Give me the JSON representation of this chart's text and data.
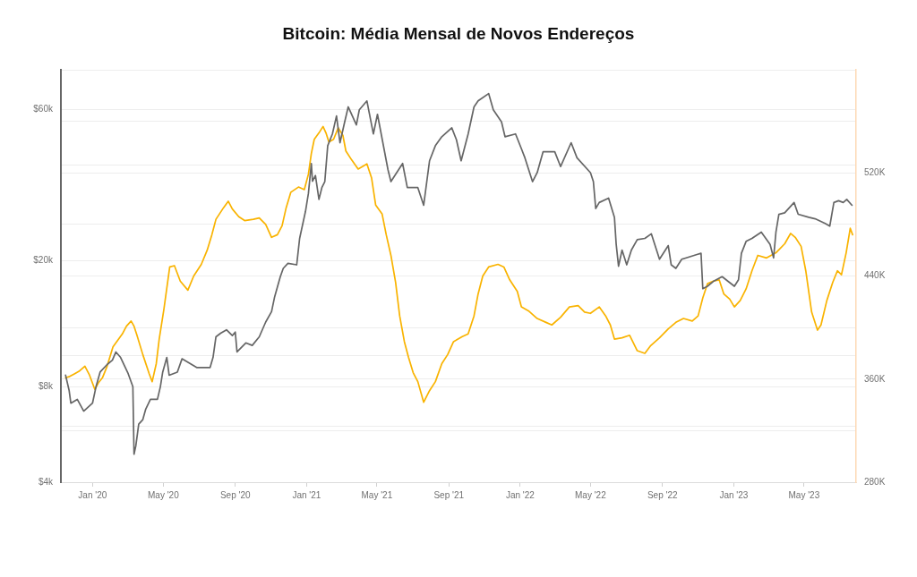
{
  "chart_data": {
    "type": "line",
    "title": "Bitcoin: Média Mensal de Novos Endereços",
    "xlim": [
      "2019-11-08",
      "2023-07-29"
    ],
    "xticks": [
      {
        "value": "2020-01-01",
        "label": "Jan '20"
      },
      {
        "value": "2020-05-01",
        "label": "May '20"
      },
      {
        "value": "2020-09-01",
        "label": "Sep '20"
      },
      {
        "value": "2021-01-01",
        "label": "Jan '21"
      },
      {
        "value": "2021-05-01",
        "label": "May '21"
      },
      {
        "value": "2021-09-01",
        "label": "Sep '21"
      },
      {
        "value": "2022-01-01",
        "label": "Jan '22"
      },
      {
        "value": "2022-05-01",
        "label": "May '22"
      },
      {
        "value": "2022-09-01",
        "label": "Sep '22"
      },
      {
        "value": "2023-01-01",
        "label": "Jan '23"
      },
      {
        "value": "2023-05-01",
        "label": "May '23"
      }
    ],
    "ylim": [
      4000,
      80000
    ],
    "yticks": [
      {
        "value": 4000,
        "label": "$4k"
      },
      {
        "value": 6000,
        "label": null
      },
      {
        "value": 8000,
        "label": "$8k"
      },
      {
        "value": 10000,
        "label": null
      },
      {
        "value": 20000,
        "label": "$20k"
      },
      {
        "value": 40000,
        "label": null
      },
      {
        "value": 60000,
        "label": "$60k"
      }
    ],
    "y2lim": [
      280000,
      600000
    ],
    "y2ticks": [
      {
        "value": 280000,
        "label": "280K"
      },
      {
        "value": 320000,
        "label": null
      },
      {
        "value": 360000,
        "label": "360K"
      },
      {
        "value": 400000,
        "label": null
      },
      {
        "value": 440000,
        "label": "440K"
      },
      {
        "value": 480000,
        "label": null
      },
      {
        "value": 520000,
        "label": "520K"
      },
      {
        "value": 560000,
        "label": null
      },
      {
        "value": 600000,
        "label": null
      }
    ],
    "log": "y",
    "grid": "y",
    "series": [
      {
        "color": "#666666",
        "x": [
          "2019-11-16",
          "2019-11-22",
          "2019-11-25",
          "2019-12-06",
          "2019-12-17",
          "2020-01-01",
          "2020-01-07",
          "2020-01-14",
          "2020-01-26",
          "2020-02-04",
          "2020-02-10",
          "2020-02-18",
          "2020-03-02",
          "2020-03-10",
          "2020-03-12",
          "2020-03-15",
          "2020-03-20",
          "2020-03-27",
          "2020-04-01",
          "2020-04-09",
          "2020-04-21",
          "2020-04-26",
          "2020-04-30",
          "2020-05-07",
          "2020-05-11",
          "2020-05-25",
          "2020-06-02",
          "2020-06-27",
          "2020-07-20",
          "2020-07-25",
          "2020-07-30",
          "2020-08-07",
          "2020-08-17",
          "2020-08-27",
          "2020-09-01",
          "2020-09-04",
          "2020-09-19",
          "2020-09-30",
          "2020-10-12",
          "2020-10-23",
          "2020-11-02",
          "2020-11-07",
          "2020-11-17",
          "2020-11-22",
          "2020-11-30",
          "2020-12-15",
          "2020-12-20",
          "2020-12-30",
          "2021-01-04",
          "2021-01-09",
          "2021-01-11",
          "2021-01-16",
          "2021-01-22",
          "2021-01-27",
          "2021-02-01",
          "2021-02-06",
          "2021-02-14",
          "2021-02-21",
          "2021-02-27",
          "2021-03-07",
          "2021-03-13",
          "2021-03-27",
          "2021-04-01",
          "2021-04-14",
          "2021-04-19",
          "2021-04-25",
          "2021-05-02",
          "2021-05-20",
          "2021-05-25",
          "2021-06-14",
          "2021-06-22",
          "2021-07-10",
          "2021-07-20",
          "2021-07-30",
          "2021-08-09",
          "2021-08-20",
          "2021-09-06",
          "2021-09-14",
          "2021-09-22",
          "2021-10-04",
          "2021-10-14",
          "2021-10-21",
          "2021-11-08",
          "2021-11-16",
          "2021-11-30",
          "2021-12-06",
          "2021-12-24",
          "2022-01-03",
          "2022-01-09",
          "2022-01-22",
          "2022-01-30",
          "2022-02-09",
          "2022-03-01",
          "2022-03-11",
          "2022-03-29",
          "2022-04-08",
          "2022-05-01",
          "2022-05-06",
          "2022-05-10",
          "2022-05-16",
          "2022-06-01",
          "2022-06-11",
          "2022-06-14",
          "2022-06-18",
          "2022-06-24",
          "2022-07-02",
          "2022-07-10",
          "2022-07-20",
          "2022-08-02",
          "2022-08-13",
          "2022-08-27",
          "2022-09-11",
          "2022-09-16",
          "2022-09-24",
          "2022-10-04",
          "2022-10-30",
          "2022-11-06",
          "2022-11-09",
          "2022-11-17",
          "2022-11-27",
          "2022-12-12",
          "2023-01-02",
          "2023-01-09",
          "2023-01-14",
          "2023-01-22",
          "2023-02-01",
          "2023-02-17",
          "2023-03-04",
          "2023-03-10",
          "2023-03-14",
          "2023-03-19",
          "2023-03-29",
          "2023-04-14",
          "2023-04-21",
          "2023-05-09",
          "2023-05-20",
          "2023-06-06",
          "2023-06-14",
          "2023-06-21",
          "2023-06-29",
          "2023-07-07",
          "2023-07-13",
          "2023-07-22"
        ],
        "values": [
          8700,
          7800,
          7100,
          7300,
          6700,
          7100,
          8000,
          8900,
          9400,
          9700,
          10300,
          9900,
          8800,
          8000,
          4900,
          5200,
          6100,
          6300,
          6800,
          7300,
          7300,
          8000,
          8900,
          9900,
          8700,
          8900,
          9800,
          9200,
          9200,
          9900,
          11500,
          11800,
          12100,
          11600,
          11900,
          10300,
          11000,
          10800,
          11500,
          12800,
          13800,
          15300,
          17800,
          18900,
          19600,
          19400,
          23500,
          28600,
          32600,
          40500,
          35600,
          37100,
          31200,
          34000,
          35500,
          46100,
          50200,
          57200,
          47100,
          54800,
          61100,
          53600,
          59800,
          63800,
          57200,
          50200,
          57900,
          38700,
          35500,
          40500,
          34000,
          34000,
          29900,
          41300,
          46100,
          49200,
          52500,
          48100,
          41300,
          50200,
          61100,
          63800,
          67300,
          59800,
          54800,
          49200,
          50200,
          45100,
          42200,
          35500,
          37900,
          44100,
          44100,
          39600,
          47100,
          42200,
          37900,
          35500,
          29200,
          30500,
          31500,
          27400,
          22500,
          19200,
          21600,
          19400,
          21600,
          23300,
          23500,
          24300,
          20200,
          22300,
          19400,
          18900,
          20200,
          20900,
          21100,
          16300,
          16600,
          17200,
          17800,
          16600,
          17400,
          21100,
          23000,
          23500,
          24600,
          22500,
          20400,
          24600,
          28000,
          28300,
          30500,
          28000,
          27400,
          27100,
          26200,
          25700,
          30500,
          30900,
          30500,
          31200,
          29900
        ]
      },
      {
        "color": "#f9b300",
        "axis": "y2",
        "x": [
          "2019-11-16",
          "2019-11-23",
          "2019-12-01",
          "2019-12-09",
          "2019-12-19",
          "2019-12-27",
          "2020-01-05",
          "2020-01-11",
          "2020-01-18",
          "2020-01-26",
          "2020-02-05",
          "2020-02-13",
          "2020-02-21",
          "2020-02-28",
          "2020-03-07",
          "2020-03-12",
          "2020-03-17",
          "2020-03-27",
          "2020-04-07",
          "2020-04-12",
          "2020-04-19",
          "2020-04-24",
          "2020-05-02",
          "2020-05-12",
          "2020-05-20",
          "2020-05-30",
          "2020-06-12",
          "2020-06-22",
          "2020-07-05",
          "2020-07-15",
          "2020-07-23",
          "2020-07-30",
          "2020-08-12",
          "2020-08-20",
          "2020-08-27",
          "2020-09-07",
          "2020-09-17",
          "2020-10-02",
          "2020-10-12",
          "2020-10-23",
          "2020-11-02",
          "2020-11-12",
          "2020-11-20",
          "2020-11-27",
          "2020-12-05",
          "2020-12-18",
          "2020-12-28",
          "2021-01-04",
          "2021-01-09",
          "2021-01-14",
          "2021-01-22",
          "2021-01-29",
          "2021-02-03",
          "2021-02-08",
          "2021-02-16",
          "2021-02-24",
          "2021-03-04",
          "2021-03-09",
          "2021-03-19",
          "2021-03-30",
          "2021-04-14",
          "2021-04-22",
          "2021-04-29",
          "2021-05-10",
          "2021-05-17",
          "2021-05-25",
          "2021-06-02",
          "2021-06-09",
          "2021-06-17",
          "2021-06-24",
          "2021-07-02",
          "2021-07-10",
          "2021-07-20",
          "2021-07-30",
          "2021-08-09",
          "2021-08-20",
          "2021-08-30",
          "2021-09-09",
          "2021-09-24",
          "2021-10-04",
          "2021-10-14",
          "2021-10-21",
          "2021-10-29",
          "2021-11-08",
          "2021-11-24",
          "2021-12-04",
          "2021-12-14",
          "2021-12-27",
          "2022-01-03",
          "2022-01-15",
          "2022-01-30",
          "2022-02-14",
          "2022-02-24",
          "2022-03-11",
          "2022-03-26",
          "2022-04-10",
          "2022-04-21",
          "2022-05-01",
          "2022-05-16",
          "2022-05-27",
          "2022-06-04",
          "2022-06-11",
          "2022-06-24",
          "2022-07-07",
          "2022-07-20",
          "2022-08-02",
          "2022-08-12",
          "2022-08-27",
          "2022-09-11",
          "2022-09-24",
          "2022-10-07",
          "2022-10-22",
          "2022-11-01",
          "2022-11-09",
          "2022-11-17",
          "2022-11-27",
          "2022-12-07",
          "2022-12-15",
          "2022-12-25",
          "2023-01-02",
          "2023-01-12",
          "2023-01-22",
          "2023-02-01",
          "2023-02-11",
          "2023-02-26",
          "2023-03-14",
          "2023-03-29",
          "2023-04-08",
          "2023-04-16",
          "2023-04-26",
          "2023-05-04",
          "2023-05-14",
          "2023-05-24",
          "2023-05-30",
          "2023-06-09",
          "2023-06-19",
          "2023-06-27",
          "2023-07-04",
          "2023-07-12",
          "2023-07-19",
          "2023-07-23"
        ],
        "values": [
          361000,
          362000,
          364000,
          366000,
          370000,
          363000,
          352000,
          357000,
          361000,
          370000,
          385000,
          390000,
          395000,
          401000,
          405000,
          401000,
          394000,
          379000,
          364000,
          358000,
          372000,
          391000,
          414000,
          447000,
          448000,
          436000,
          429000,
          440000,
          449000,
          460000,
          472000,
          484000,
          493000,
          498000,
          492000,
          486000,
          483000,
          484000,
          485000,
          480000,
          470000,
          472000,
          479000,
          493000,
          505000,
          509000,
          507000,
          519000,
          535000,
          546000,
          551000,
          556000,
          551000,
          544000,
          546000,
          555000,
          549000,
          537000,
          530000,
          523000,
          527000,
          516000,
          495000,
          488000,
          472000,
          456000,
          435000,
          409000,
          389000,
          377000,
          365000,
          358000,
          342000,
          351000,
          358000,
          372000,
          379000,
          389000,
          393000,
          395000,
          409000,
          426000,
          440000,
          447000,
          449000,
          447000,
          437000,
          428000,
          416000,
          413000,
          407000,
          404000,
          402000,
          408000,
          416000,
          417000,
          412000,
          411000,
          416000,
          409000,
          402000,
          391000,
          392000,
          394000,
          382000,
          380000,
          386000,
          392000,
          399000,
          404000,
          407000,
          405000,
          409000,
          423000,
          434000,
          436000,
          437000,
          426000,
          422000,
          416000,
          421000,
          430000,
          444000,
          456000,
          454000,
          458000,
          465000,
          473000,
          470000,
          463000,
          444000,
          412000,
          398000,
          402000,
          421000,
          435000,
          444000,
          441000,
          458000,
          477000,
          472000
        ]
      }
    ]
  }
}
